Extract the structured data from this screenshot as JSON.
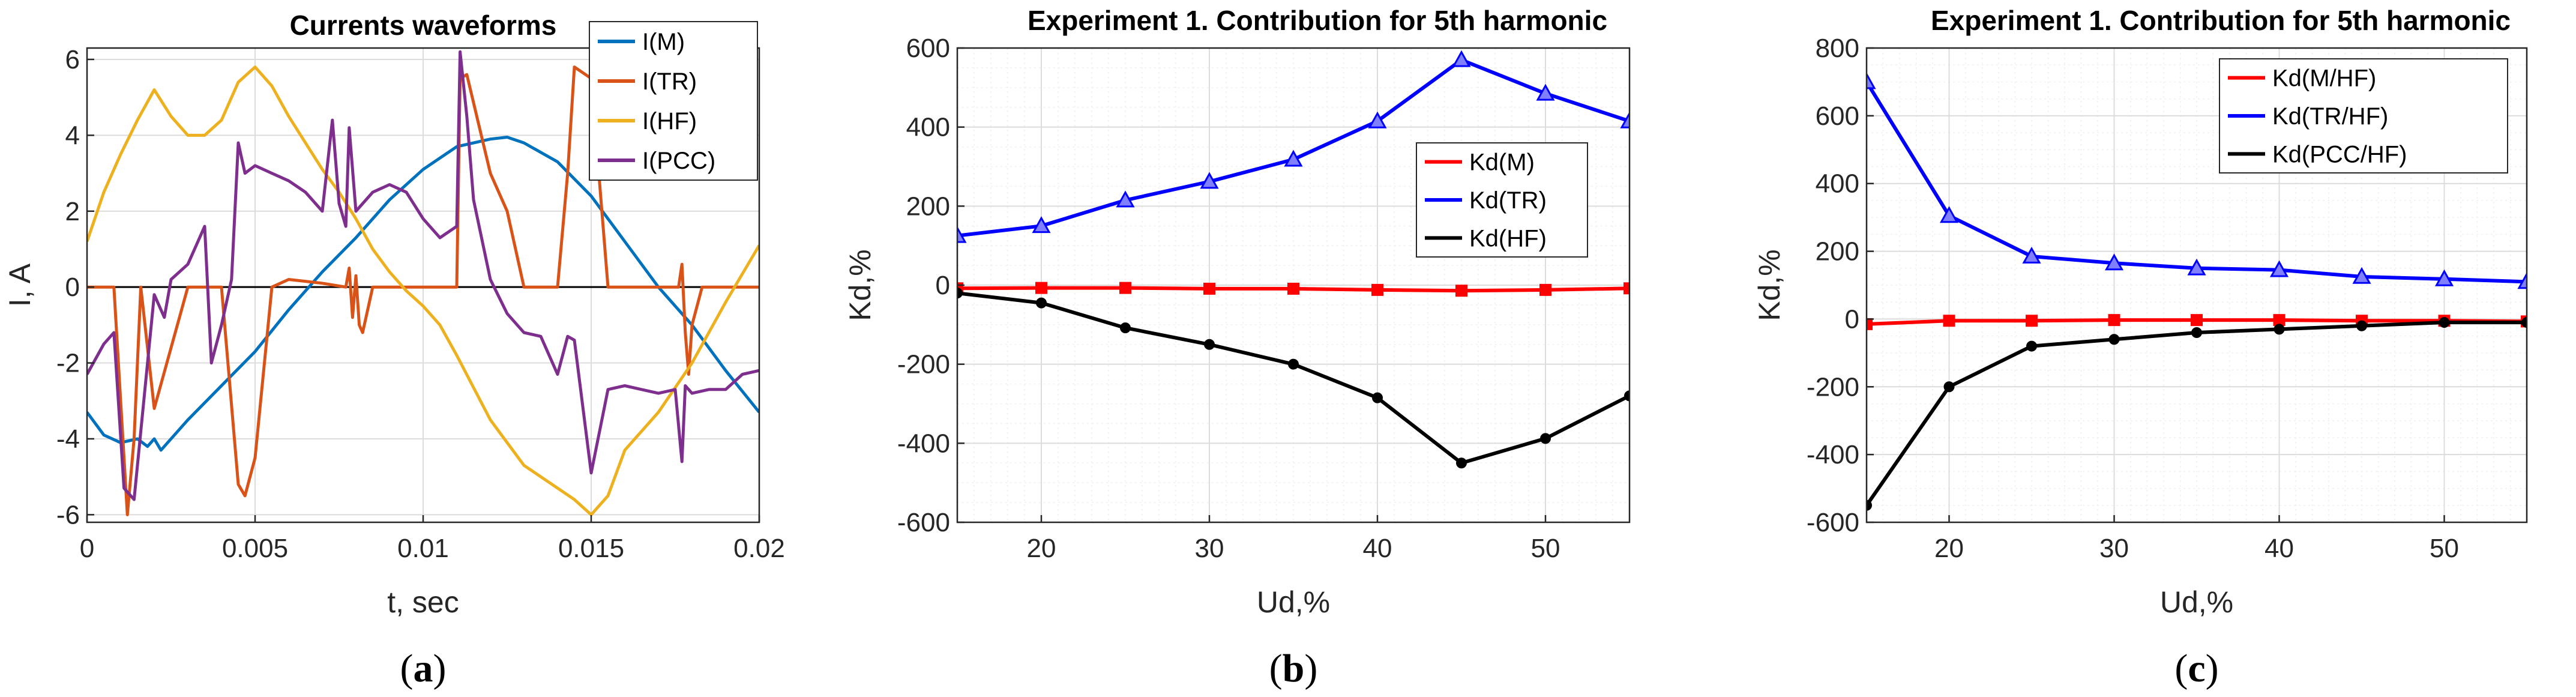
{
  "chart_data": [
    {
      "type": "line",
      "title": "Currents waveforms",
      "xlabel": "t, sec",
      "ylabel": "I, A",
      "xlim": [
        0,
        0.02
      ],
      "ylim": [
        -6.2,
        6.3
      ],
      "xticks": [
        0,
        0.005,
        0.01,
        0.015,
        0.02
      ],
      "xtick_labels": [
        "0",
        "0.005",
        "0.01",
        "0.015",
        "0.02"
      ],
      "yticks": [
        -6,
        -4,
        -2,
        0,
        2,
        4,
        6
      ],
      "ytick_labels": [
        "-6",
        "-4",
        "-2",
        "0",
        "2",
        "4",
        "6"
      ],
      "grid": true,
      "zero_line": true,
      "legend_position": "top-right",
      "caption": "a",
      "series": [
        {
          "name": "I(M)",
          "color": "#0072BD",
          "marker": "none",
          "x": [
            0,
            0.0005,
            0.001,
            0.0015,
            0.0018,
            0.002,
            0.0022,
            0.003,
            0.004,
            0.005,
            0.006,
            0.007,
            0.008,
            0.009,
            0.01,
            0.011,
            0.012,
            0.0125,
            0.013,
            0.014,
            0.015,
            0.016,
            0.017,
            0.018,
            0.019,
            0.02
          ],
          "y": [
            -3.3,
            -3.9,
            -4.1,
            -4.0,
            -4.2,
            -4.0,
            -4.3,
            -3.5,
            -2.6,
            -1.7,
            -0.6,
            0.4,
            1.3,
            2.3,
            3.1,
            3.7,
            3.9,
            3.95,
            3.8,
            3.3,
            2.4,
            1.2,
            0.0,
            -1.0,
            -2.2,
            -3.3
          ]
        },
        {
          "name": "I(TR)",
          "color": "#D95319",
          "marker": "none",
          "x": [
            0,
            0.0008,
            0.001,
            0.0012,
            0.0014,
            0.0016,
            0.002,
            0.003,
            0.004,
            0.0045,
            0.0047,
            0.005,
            0.0055,
            0.006,
            0.007,
            0.0077,
            0.0078,
            0.0079,
            0.008,
            0.0081,
            0.0082,
            0.0085,
            0.0095,
            0.011,
            0.0111,
            0.0113,
            0.012,
            0.0125,
            0.013,
            0.014,
            0.0143,
            0.0145,
            0.015,
            0.0155,
            0.016,
            0.017,
            0.0176,
            0.0177,
            0.0178,
            0.0179,
            0.018,
            0.0183,
            0.019,
            0.02
          ],
          "y": [
            0,
            0,
            -3.0,
            -6.0,
            -4.0,
            0,
            -3.2,
            0,
            0,
            -5.2,
            -5.5,
            -4.5,
            0,
            0.2,
            0.1,
            0,
            0.5,
            -0.8,
            0.3,
            -1.0,
            -1.2,
            0,
            0,
            0,
            5.5,
            5.6,
            3.0,
            2.0,
            0,
            0,
            3.0,
            5.8,
            5.5,
            0,
            0,
            0,
            0,
            0.6,
            -1.2,
            -2.3,
            -1.0,
            0,
            0,
            0
          ]
        },
        {
          "name": "I(HF)",
          "color": "#EDB120",
          "marker": "none",
          "x": [
            0,
            0.0005,
            0.001,
            0.0015,
            0.002,
            0.0025,
            0.003,
            0.0035,
            0.004,
            0.0045,
            0.005,
            0.0055,
            0.006,
            0.0065,
            0.007,
            0.0075,
            0.008,
            0.0085,
            0.009,
            0.0095,
            0.01,
            0.0105,
            0.011,
            0.012,
            0.013,
            0.014,
            0.0145,
            0.015,
            0.0155,
            0.016,
            0.017,
            0.018,
            0.019,
            0.02
          ],
          "y": [
            1.2,
            2.5,
            3.5,
            4.4,
            5.2,
            4.5,
            4.0,
            4.0,
            4.4,
            5.4,
            5.8,
            5.3,
            4.5,
            3.8,
            3.1,
            2.5,
            1.8,
            1.0,
            0.4,
            -0.1,
            -0.5,
            -1.0,
            -1.8,
            -3.5,
            -4.7,
            -5.3,
            -5.6,
            -6.0,
            -5.5,
            -4.3,
            -3.3,
            -2.0,
            -0.4,
            1.1
          ]
        },
        {
          "name": "I(PCC)",
          "color": "#7E2F8E",
          "marker": "none",
          "x": [
            0,
            0.0005,
            0.0008,
            0.0011,
            0.0014,
            0.002,
            0.0023,
            0.0025,
            0.003,
            0.0035,
            0.0037,
            0.004,
            0.0043,
            0.0045,
            0.0047,
            0.005,
            0.0055,
            0.006,
            0.0065,
            0.007,
            0.0073,
            0.0075,
            0.0077,
            0.0078,
            0.008,
            0.0085,
            0.009,
            0.0095,
            0.01,
            0.0105,
            0.011,
            0.0111,
            0.0113,
            0.0115,
            0.012,
            0.0125,
            0.013,
            0.0135,
            0.014,
            0.0143,
            0.0145,
            0.015,
            0.0155,
            0.016,
            0.0165,
            0.017,
            0.0175,
            0.0177,
            0.0178,
            0.0179,
            0.018,
            0.0185,
            0.019,
            0.0195,
            0.02
          ],
          "y": [
            -2.3,
            -1.5,
            -1.2,
            -5.3,
            -5.6,
            -0.2,
            -0.8,
            0.2,
            0.6,
            1.6,
            -2.0,
            -1.0,
            0.2,
            3.8,
            3.0,
            3.2,
            3.0,
            2.8,
            2.5,
            2.0,
            4.4,
            2.2,
            1.6,
            4.2,
            2.0,
            2.5,
            2.7,
            2.5,
            1.8,
            1.3,
            1.6,
            6.2,
            4.5,
            2.3,
            0.2,
            -0.7,
            -1.2,
            -1.3,
            -2.3,
            -1.3,
            -1.4,
            -4.9,
            -2.7,
            -2.6,
            -2.7,
            -2.8,
            -2.7,
            -4.6,
            -2.6,
            -2.7,
            -2.8,
            -2.7,
            -2.7,
            -2.3,
            -2.2
          ]
        }
      ]
    },
    {
      "type": "line",
      "title": "Experiment 1. Contribution for 5th harmonic",
      "xlabel": "Ud,%",
      "ylabel": "Kd,%",
      "xlim": [
        15,
        55
      ],
      "ylim": [
        -600,
        600
      ],
      "xticks": [
        20,
        30,
        40,
        50
      ],
      "xtick_labels": [
        "20",
        "30",
        "40",
        "50"
      ],
      "yticks": [
        -600,
        -400,
        -200,
        0,
        200,
        400,
        600
      ],
      "ytick_labels": [
        "-600",
        "-400",
        "-200",
        "0",
        "200",
        "400",
        "600"
      ],
      "grid": true,
      "minor_grid": true,
      "legend_position": "center-right",
      "caption": "b",
      "x": [
        15,
        20,
        25,
        30,
        35,
        40,
        45,
        50,
        55
      ],
      "series": [
        {
          "name": "Kd(M)",
          "color": "#FF0000",
          "marker": "square",
          "values": [
            -8,
            -7,
            -7,
            -9,
            -9,
            -12,
            -14,
            -12,
            -8
          ]
        },
        {
          "name": "Kd(TR)",
          "color": "#0000FF",
          "marker": "triangle",
          "values": [
            125,
            150,
            215,
            262,
            318,
            415,
            570,
            485,
            415
          ]
        },
        {
          "name": "Kd(HF)",
          "color": "#000000",
          "marker": "circle",
          "values": [
            -20,
            -45,
            -108,
            -150,
            -200,
            -285,
            -450,
            -388,
            -280
          ]
        }
      ]
    },
    {
      "type": "line",
      "title": "Experiment 1. Contribution for 5th harmonic",
      "xlabel": "Ud,%",
      "ylabel": "Kd,%",
      "xlim": [
        15,
        55
      ],
      "ylim": [
        -600,
        800
      ],
      "xticks": [
        20,
        30,
        40,
        50
      ],
      "xtick_labels": [
        "20",
        "30",
        "40",
        "50"
      ],
      "yticks": [
        -600,
        -400,
        -200,
        0,
        200,
        400,
        600,
        800
      ],
      "ytick_labels": [
        "-600",
        "-400",
        "-200",
        "0",
        "200",
        "400",
        "600",
        "800"
      ],
      "grid": true,
      "minor_grid": true,
      "legend_position": "top-right",
      "caption": "c",
      "x": [
        15,
        20,
        25,
        30,
        35,
        40,
        45,
        50,
        55
      ],
      "series": [
        {
          "name": "Kd(M/HF)",
          "color": "#FF0000",
          "marker": "square",
          "values": [
            -15,
            -5,
            -5,
            -3,
            -3,
            -3,
            -5,
            -5,
            -7
          ]
        },
        {
          "name": "Kd(TR/HF)",
          "color": "#0000FF",
          "marker": "triangle",
          "values": [
            700,
            305,
            185,
            165,
            150,
            145,
            125,
            118,
            110
          ]
        },
        {
          "name": "Kd(PCC/HF)",
          "color": "#000000",
          "marker": "circle",
          "values": [
            -550,
            -200,
            -80,
            -60,
            -40,
            -30,
            -20,
            -10,
            -10
          ]
        }
      ]
    }
  ]
}
